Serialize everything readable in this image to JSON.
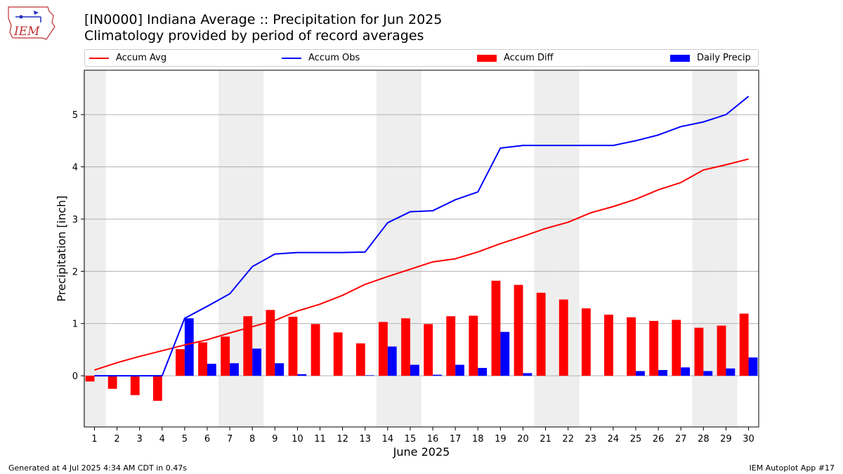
{
  "header": {
    "title_line1": "[IN0000] Indiana Average :: Precipitation for Jun 2025",
    "title_line2": "Climatology provided by period of record averages"
  },
  "logo": {
    "text": "IEM"
  },
  "footer": {
    "left": "Generated at 4 Jul 2025 4:34 AM CDT in 0.47s",
    "right": "IEM Autoplot App #17"
  },
  "colors": {
    "accum_avg": "#ff0000",
    "accum_obs": "#0000ff",
    "accum_diff": "#ff0000",
    "daily_precip": "#0000ff",
    "weekend_shade": "#eeeeee",
    "grid": "#b0b0b0"
  },
  "chart_data": {
    "type": "bar",
    "title": "[IN0000] Indiana Average :: Precipitation for Jun 2025",
    "subtitle": "Climatology provided by period of record averages",
    "xlabel": "June 2025",
    "ylabel": "Precipitation [inch]",
    "ylim": [
      -0.98,
      5.85
    ],
    "yticks": [
      0,
      1,
      2,
      3,
      4,
      5
    ],
    "grid": "horizontal",
    "legend_position": "top",
    "categories": [
      "1",
      "2",
      "3",
      "4",
      "5",
      "6",
      "7",
      "8",
      "9",
      "10",
      "11",
      "12",
      "13",
      "14",
      "15",
      "16",
      "17",
      "18",
      "19",
      "20",
      "21",
      "22",
      "23",
      "24",
      "25",
      "26",
      "27",
      "28",
      "29",
      "30"
    ],
    "shaded_days": [
      1,
      7,
      8,
      14,
      15,
      21,
      22,
      28,
      29
    ],
    "series": [
      {
        "name": "Accum Avg",
        "kind": "line",
        "values": [
          0.11,
          0.25,
          0.37,
          0.48,
          0.59,
          0.69,
          0.82,
          0.94,
          1.06,
          1.24,
          1.37,
          1.54,
          1.75,
          1.9,
          2.04,
          2.18,
          2.24,
          2.37,
          2.53,
          2.67,
          2.82,
          2.94,
          3.12,
          3.24,
          3.38,
          3.56,
          3.7,
          3.94,
          4.04,
          4.15
        ]
      },
      {
        "name": "Accum Obs",
        "kind": "line",
        "values": [
          0.0,
          0.0,
          0.0,
          0.0,
          1.1,
          1.33,
          1.57,
          2.09,
          2.33,
          2.36,
          2.36,
          2.36,
          2.37,
          2.93,
          3.14,
          3.16,
          3.37,
          3.52,
          4.36,
          4.41,
          4.41,
          4.41,
          4.41,
          4.41,
          4.5,
          4.61,
          4.77,
          4.86,
          5.0,
          5.35
        ]
      },
      {
        "name": "Accum Diff",
        "kind": "bar",
        "values": [
          -0.11,
          -0.25,
          -0.37,
          -0.48,
          0.51,
          0.64,
          0.75,
          1.14,
          1.26,
          1.13,
          0.99,
          0.83,
          0.62,
          1.03,
          1.1,
          0.99,
          1.14,
          1.15,
          1.82,
          1.74,
          1.59,
          1.46,
          1.29,
          1.17,
          1.12,
          1.05,
          1.07,
          0.92,
          0.96,
          1.19
        ]
      },
      {
        "name": "Daily Precip",
        "kind": "bar",
        "values": [
          0.0,
          0.0,
          0.0,
          0.0,
          1.1,
          0.23,
          0.24,
          0.52,
          0.24,
          0.03,
          0.0,
          0.0,
          0.01,
          0.56,
          0.21,
          0.02,
          0.21,
          0.15,
          0.84,
          0.05,
          0.0,
          0.0,
          0.0,
          0.0,
          0.09,
          0.11,
          0.16,
          0.09,
          0.14,
          0.35
        ]
      }
    ]
  }
}
